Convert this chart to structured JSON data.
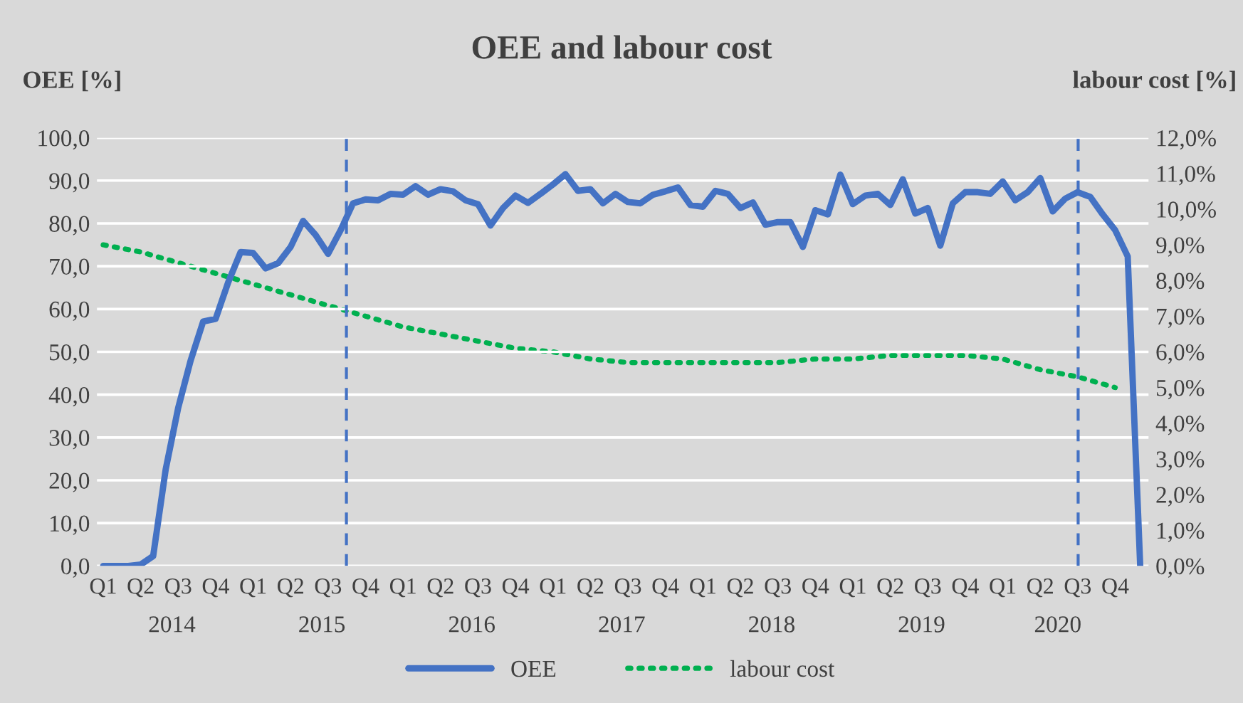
{
  "chart_data": {
    "type": "line",
    "title": "OEE and labour cost",
    "ylabel": "OEE [%]",
    "y2label": "labour cost [%]",
    "x": [
      "2014-01",
      "2014-02",
      "2014-03",
      "2014-04",
      "2014-05",
      "2014-06",
      "2014-07",
      "2014-08",
      "2014-09",
      "2014-10",
      "2014-11",
      "2014-12",
      "2015-01",
      "2015-02",
      "2015-03",
      "2015-04",
      "2015-05",
      "2015-06",
      "2015-07",
      "2015-08",
      "2015-09",
      "2015-10",
      "2015-11",
      "2015-12",
      "2016-01",
      "2016-02",
      "2016-03",
      "2016-04",
      "2016-05",
      "2016-06",
      "2016-07",
      "2016-08",
      "2016-09",
      "2016-10",
      "2016-11",
      "2016-12",
      "2017-01",
      "2017-02",
      "2017-03",
      "2017-04",
      "2017-05",
      "2017-06",
      "2017-07",
      "2017-08",
      "2017-09",
      "2017-10",
      "2017-11",
      "2017-12",
      "2018-01",
      "2018-02",
      "2018-03",
      "2018-04",
      "2018-05",
      "2018-06",
      "2018-07",
      "2018-08",
      "2018-09",
      "2018-10",
      "2018-11",
      "2018-12",
      "2019-01",
      "2019-02",
      "2019-03",
      "2019-04",
      "2019-05",
      "2019-06",
      "2019-07",
      "2019-08",
      "2019-09",
      "2019-10",
      "2019-11",
      "2019-12",
      "2020-01",
      "2020-02",
      "2020-03",
      "2020-04",
      "2020-05",
      "2020-06",
      "2020-07",
      "2020-08",
      "2020-09",
      "2020-10",
      "2020-11",
      "2020-12"
    ],
    "series": [
      {
        "name": "OEE",
        "color": "#4472c4",
        "line_style": "solid",
        "values": [
          0,
          0,
          0,
          0.3,
          2.3,
          22.5,
          36.9,
          48,
          57.1,
          57.7,
          66.2,
          73.3,
          73.1,
          69.5,
          70.7,
          74.5,
          80.6,
          77.3,
          72.9,
          78.4,
          84.7,
          85.6,
          85.4,
          86.9,
          86.7,
          88.7,
          86.7,
          88.0,
          87.5,
          85.4,
          84.5,
          79.5,
          83.6,
          86.5,
          84.8,
          86.9,
          89.1,
          91.5,
          87.6,
          88.0,
          84.7,
          86.9,
          85.0,
          84.7,
          86.7,
          87.5,
          88.4,
          84.3,
          83.9,
          87.6,
          86.9,
          83.6,
          84.9,
          79.7,
          80.3,
          80.3,
          74.5,
          83.1,
          82.1,
          91.4,
          84.5,
          86.5,
          86.9,
          84.3,
          90.3,
          82.3,
          83.6,
          74.8,
          84.7,
          87.3,
          87.3,
          86.9,
          89.8,
          85.4,
          87.3,
          90.6,
          82.8,
          85.8,
          87.3,
          86.2,
          82.1,
          78.4,
          72.3,
          0
        ]
      },
      {
        "name": "labour cost",
        "color": "#00b050",
        "line_style": "dotted",
        "axis": "y2",
        "x": [
          "2014-01",
          "2014-04",
          "2014-07",
          "2014-10",
          "2015-01",
          "2015-04",
          "2015-07",
          "2015-10",
          "2016-01",
          "2016-04",
          "2016-07",
          "2016-10",
          "2017-01",
          "2017-04",
          "2017-07",
          "2017-10",
          "2018-01",
          "2018-04",
          "2018-07",
          "2018-10",
          "2019-01",
          "2019-04",
          "2019-07",
          "2019-10",
          "2020-01",
          "2020-04",
          "2020-07",
          "2020-10"
        ],
        "values": [
          9.0,
          8.8,
          8.5,
          8.2,
          7.9,
          7.6,
          7.3,
          7.0,
          6.7,
          6.5,
          6.3,
          6.1,
          6.0,
          5.8,
          5.7,
          5.7,
          5.7,
          5.7,
          5.7,
          5.8,
          5.8,
          5.9,
          5.9,
          5.9,
          5.8,
          5.5,
          5.3,
          5.0
        ]
      }
    ],
    "xlim": [
      "2013-12-16",
      "2020-12-21"
    ],
    "xticks": [
      {
        "value": "2014-01",
        "label": "Q1"
      },
      {
        "value": "2014-04",
        "label": "Q2"
      },
      {
        "value": "2014-07",
        "label": "Q3"
      },
      {
        "value": "2014-10",
        "label": "Q4"
      },
      {
        "value": "2015-01",
        "label": "Q1"
      },
      {
        "value": "2015-04",
        "label": "Q2"
      },
      {
        "value": "2015-07",
        "label": "Q3"
      },
      {
        "value": "2015-10",
        "label": "Q4"
      },
      {
        "value": "2016-01",
        "label": "Q1"
      },
      {
        "value": "2016-04",
        "label": "Q2"
      },
      {
        "value": "2016-07",
        "label": "Q3"
      },
      {
        "value": "2016-10",
        "label": "Q4"
      },
      {
        "value": "2017-01",
        "label": "Q1"
      },
      {
        "value": "2017-04",
        "label": "Q2"
      },
      {
        "value": "2017-07",
        "label": "Q3"
      },
      {
        "value": "2017-10",
        "label": "Q4"
      },
      {
        "value": "2018-01",
        "label": "Q1"
      },
      {
        "value": "2018-04",
        "label": "Q2"
      },
      {
        "value": "2018-07",
        "label": "Q3"
      },
      {
        "value": "2018-10",
        "label": "Q4"
      },
      {
        "value": "2019-01",
        "label": "Q1"
      },
      {
        "value": "2019-04",
        "label": "Q2"
      },
      {
        "value": "2019-07",
        "label": "Q3"
      },
      {
        "value": "2019-10",
        "label": "Q4"
      },
      {
        "value": "2020-01",
        "label": "Q1"
      },
      {
        "value": "2020-04",
        "label": "Q2"
      },
      {
        "value": "2020-07",
        "label": "Q3"
      },
      {
        "value": "2020-10",
        "label": "Q4"
      }
    ],
    "x2lim": [
      "2013-12-16",
      "2020-12-21"
    ],
    "x2ticks": [
      {
        "value": "2014-06-16",
        "label": "2014"
      },
      {
        "value": "2015-06-16",
        "label": "2015"
      },
      {
        "value": "2016-06-16",
        "label": "2016"
      },
      {
        "value": "2017-06-16",
        "label": "2017"
      },
      {
        "value": "2018-06-16",
        "label": "2018"
      },
      {
        "value": "2019-06-16",
        "label": "2019"
      },
      {
        "value": "2020-05-13",
        "label": "2020"
      }
    ],
    "ylim": [
      0,
      100
    ],
    "yticks": [
      {
        "value": 0,
        "label": "0,0"
      },
      {
        "value": 10,
        "label": "10,0"
      },
      {
        "value": 20,
        "label": "20,0"
      },
      {
        "value": 30,
        "label": "30,0"
      },
      {
        "value": 40,
        "label": "40,0"
      },
      {
        "value": 50,
        "label": "50,0"
      },
      {
        "value": 60,
        "label": "60,0"
      },
      {
        "value": 70,
        "label": "70,0"
      },
      {
        "value": 80,
        "label": "80,0"
      },
      {
        "value": 90,
        "label": "90,0"
      },
      {
        "value": 100,
        "label": "100,0"
      }
    ],
    "y2lim": [
      0,
      12
    ],
    "y2ticks": [
      {
        "value": 0,
        "label": "0,0%"
      },
      {
        "value": 1,
        "label": "1,0%"
      },
      {
        "value": 2,
        "label": "2,0%"
      },
      {
        "value": 3,
        "label": "3,0%"
      },
      {
        "value": 4,
        "label": "4,0%"
      },
      {
        "value": 5,
        "label": "5,0%"
      },
      {
        "value": 6,
        "label": "6,0%"
      },
      {
        "value": 7,
        "label": "7,0%"
      },
      {
        "value": 8,
        "label": "8,0%"
      },
      {
        "value": 9,
        "label": "9,0%"
      },
      {
        "value": 10,
        "label": "10,0%"
      },
      {
        "value": 11,
        "label": "11,0%"
      },
      {
        "value": 12,
        "label": "12,0%"
      }
    ],
    "ref_lines": [
      {
        "axis": "x",
        "value": "2015-08-15",
        "color": "#4472c4",
        "line_style": "dashed"
      },
      {
        "axis": "x",
        "value": "2020-07-02",
        "color": "#4472c4",
        "line_style": "dashed"
      }
    ],
    "grid": "y",
    "legend": "bottom",
    "marker": "none"
  }
}
